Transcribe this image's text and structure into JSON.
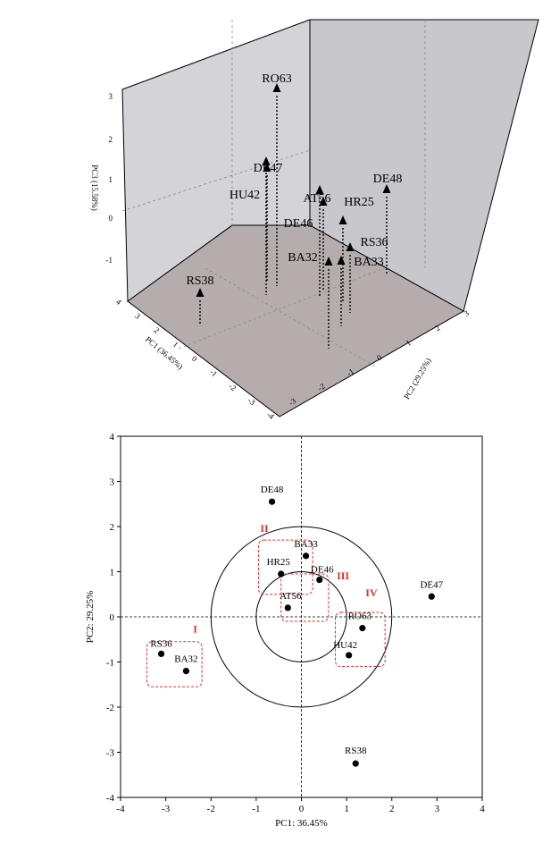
{
  "chart_data": [
    {
      "type": "scatter",
      "subtype": "3d-scatter-with-drop-lines",
      "xlabel": "PC1 (36.45%)",
      "ylabel": "PC2 (29.25%)",
      "zlabel": "PC3 (15.58%)",
      "pc1_ticks": [
        "4",
        "3",
        "2",
        "1",
        "0",
        "-1",
        "-2",
        "-3",
        "-4"
      ],
      "pc2_ticks": [
        "-3",
        "-2",
        "-1",
        "0",
        "1",
        "2",
        "3"
      ],
      "pc3_ticks": [
        "3",
        "2",
        "1",
        "0",
        "-1"
      ],
      "xlim": [
        -4,
        4
      ],
      "ylim": [
        -3,
        3
      ],
      "zlim": [
        -1.6,
        3
      ],
      "marker": "triangle",
      "points": [
        {
          "label": "RO63",
          "pc1": 1.35,
          "pc2": -0.25,
          "pc3": 2.8
        },
        {
          "label": "DE47",
          "pc1": 2.9,
          "pc2": 0.45,
          "pc3": 1.0
        },
        {
          "label": "HU42",
          "pc1": 1.0,
          "pc2": -0.85,
          "pc3": 0.85
        },
        {
          "label": "DE48",
          "pc1": -0.6,
          "pc2": 2.55,
          "pc3": 0.7
        },
        {
          "label": "AT56",
          "pc1": -0.3,
          "pc2": 0.2,
          "pc3": 0.1
        },
        {
          "label": "DE46",
          "pc1": 0.4,
          "pc2": 0.8,
          "pc3": -0.5
        },
        {
          "label": "HR25",
          "pc1": -0.5,
          "pc2": 0.95,
          "pc3": -0.3
        },
        {
          "label": "RS36",
          "pc1": -3.1,
          "pc2": -0.8,
          "pc3": -0.4
        },
        {
          "label": "BA33",
          "pc1": 0.1,
          "pc2": 1.35,
          "pc3": -1.0
        },
        {
          "label": "BA32",
          "pc1": -2.5,
          "pc2": -1.2,
          "pc3": -0.9
        },
        {
          "label": "RS38",
          "pc1": 1.2,
          "pc2": -3.25,
          "pc3": -0.3
        }
      ]
    },
    {
      "type": "scatter",
      "xlabel": "PC1: 36.45%",
      "ylabel": "PC2: 29.25%",
      "xlim": [
        -4,
        4
      ],
      "ylim": [
        -4,
        4
      ],
      "xticks": [
        -4,
        -3,
        -2,
        -1,
        0,
        1,
        2,
        3,
        4
      ],
      "yticks": [
        -4,
        -3,
        -2,
        -1,
        0,
        1,
        2,
        3,
        4
      ],
      "circles": [
        {
          "center": [
            0,
            0
          ],
          "radius": 1
        },
        {
          "center": [
            0,
            0
          ],
          "radius": 2
        }
      ],
      "points": [
        {
          "label": "DE48",
          "x": -0.65,
          "y": 2.55
        },
        {
          "label": "BA33",
          "x": 0.1,
          "y": 1.35
        },
        {
          "label": "HR25",
          "x": -0.45,
          "y": 0.95
        },
        {
          "label": "DE46",
          "x": 0.4,
          "y": 0.82
        },
        {
          "label": "AT56",
          "x": -0.3,
          "y": 0.2
        },
        {
          "label": "DE47",
          "x": 2.88,
          "y": 0.45
        },
        {
          "label": "RO63",
          "x": 1.35,
          "y": -0.25
        },
        {
          "label": "HU42",
          "x": 1.05,
          "y": -0.85
        },
        {
          "label": "RS36",
          "x": -3.1,
          "y": -0.82
        },
        {
          "label": "BA32",
          "x": -2.55,
          "y": -1.2
        },
        {
          "label": "RS38",
          "x": 1.2,
          "y": -3.25
        }
      ],
      "groups": [
        {
          "label": "I",
          "members": [
            "RS36",
            "BA32"
          ]
        },
        {
          "label": "II",
          "members": [
            "BA33",
            "HR25"
          ]
        },
        {
          "label": "III",
          "members": [
            "DE46",
            "AT56"
          ]
        },
        {
          "label": "IV",
          "members": [
            "RO63",
            "HU42"
          ]
        }
      ],
      "group_color": "#d9322a"
    }
  ]
}
